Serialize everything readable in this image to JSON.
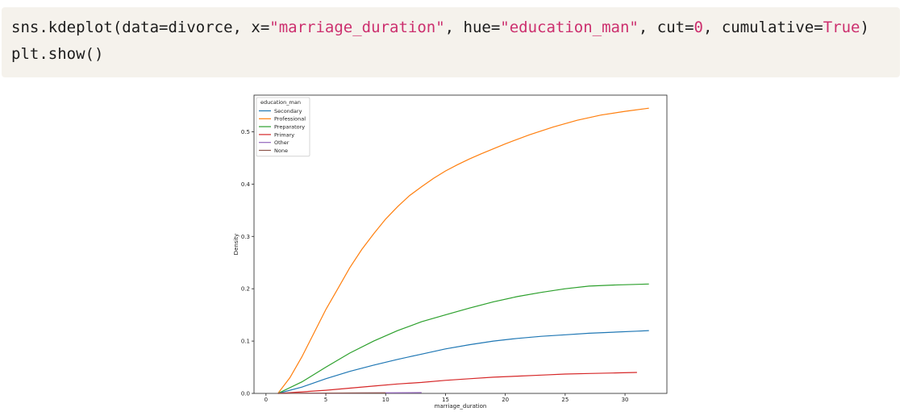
{
  "code": {
    "line1_parts": [
      {
        "text": "sns.kdeplot(data=divorce, x=",
        "kind": "plain"
      },
      {
        "text": "\"marriage_duration\"",
        "kind": "str"
      },
      {
        "text": ", hue=",
        "kind": "plain"
      },
      {
        "text": "\"education_man\"",
        "kind": "str"
      },
      {
        "text": ", cut=",
        "kind": "plain"
      },
      {
        "text": "0",
        "kind": "num"
      },
      {
        "text": ", cumulative=",
        "kind": "plain"
      },
      {
        "text": "True",
        "kind": "kw"
      },
      {
        "text": ")",
        "kind": "plain"
      }
    ],
    "line2": "plt.show()"
  },
  "chart_data": {
    "type": "line",
    "xlabel": "marriage_duration",
    "ylabel": "Density",
    "xlim": [
      -1,
      33.5
    ],
    "ylim": [
      0,
      0.57
    ],
    "xticks": [
      0,
      5,
      10,
      15,
      20,
      25,
      30
    ],
    "yticks": [
      0.0,
      0.1,
      0.2,
      0.3,
      0.4,
      0.5
    ],
    "grid": false,
    "legend": {
      "title": "education_man",
      "placement": "top-left"
    },
    "series": [
      {
        "name": "Secondary",
        "color": "#1f77b4",
        "x": [
          1,
          3,
          5,
          7,
          9,
          11,
          13,
          15,
          17,
          19,
          21,
          23,
          25,
          27,
          29,
          31,
          32
        ],
        "y": [
          0,
          0.012,
          0.028,
          0.042,
          0.054,
          0.065,
          0.075,
          0.085,
          0.093,
          0.1,
          0.105,
          0.109,
          0.112,
          0.115,
          0.117,
          0.119,
          0.12
        ]
      },
      {
        "name": "Professional",
        "color": "#ff7f0e",
        "x": [
          1,
          2,
          3,
          4,
          5,
          6,
          7,
          8,
          9,
          10,
          11,
          12,
          13,
          14,
          15,
          16,
          17,
          18,
          20,
          22,
          24,
          26,
          28,
          30,
          32
        ],
        "y": [
          0,
          0.03,
          0.07,
          0.115,
          0.16,
          0.2,
          0.24,
          0.275,
          0.305,
          0.333,
          0.357,
          0.378,
          0.395,
          0.411,
          0.425,
          0.437,
          0.448,
          0.458,
          0.477,
          0.494,
          0.509,
          0.522,
          0.532,
          0.539,
          0.545
        ]
      },
      {
        "name": "Preparatory",
        "color": "#2ca02c",
        "x": [
          1,
          3,
          5,
          7,
          9,
          11,
          13,
          15,
          17,
          19,
          21,
          23,
          25,
          27,
          29,
          32
        ],
        "y": [
          0,
          0.022,
          0.05,
          0.077,
          0.1,
          0.12,
          0.137,
          0.15,
          0.163,
          0.175,
          0.185,
          0.193,
          0.2,
          0.205,
          0.207,
          0.209
        ]
      },
      {
        "name": "Primary",
        "color": "#d62728",
        "x": [
          1,
          3,
          5,
          7,
          9,
          11,
          13,
          15,
          17,
          19,
          21,
          23,
          25,
          27,
          29,
          31
        ],
        "y": [
          0,
          0.003,
          0.006,
          0.01,
          0.014,
          0.018,
          0.021,
          0.025,
          0.028,
          0.031,
          0.033,
          0.035,
          0.037,
          0.038,
          0.039,
          0.04
        ]
      },
      {
        "name": "Other",
        "color": "#9467bd",
        "x": [
          1,
          5,
          9,
          13
        ],
        "y": [
          0,
          0.0005,
          0.001,
          0.0015
        ]
      },
      {
        "name": "None",
        "color": "#8c564b",
        "x": [
          1,
          4,
          7,
          10
        ],
        "y": [
          0,
          0.0005,
          0.0008,
          0.001
        ]
      }
    ]
  }
}
